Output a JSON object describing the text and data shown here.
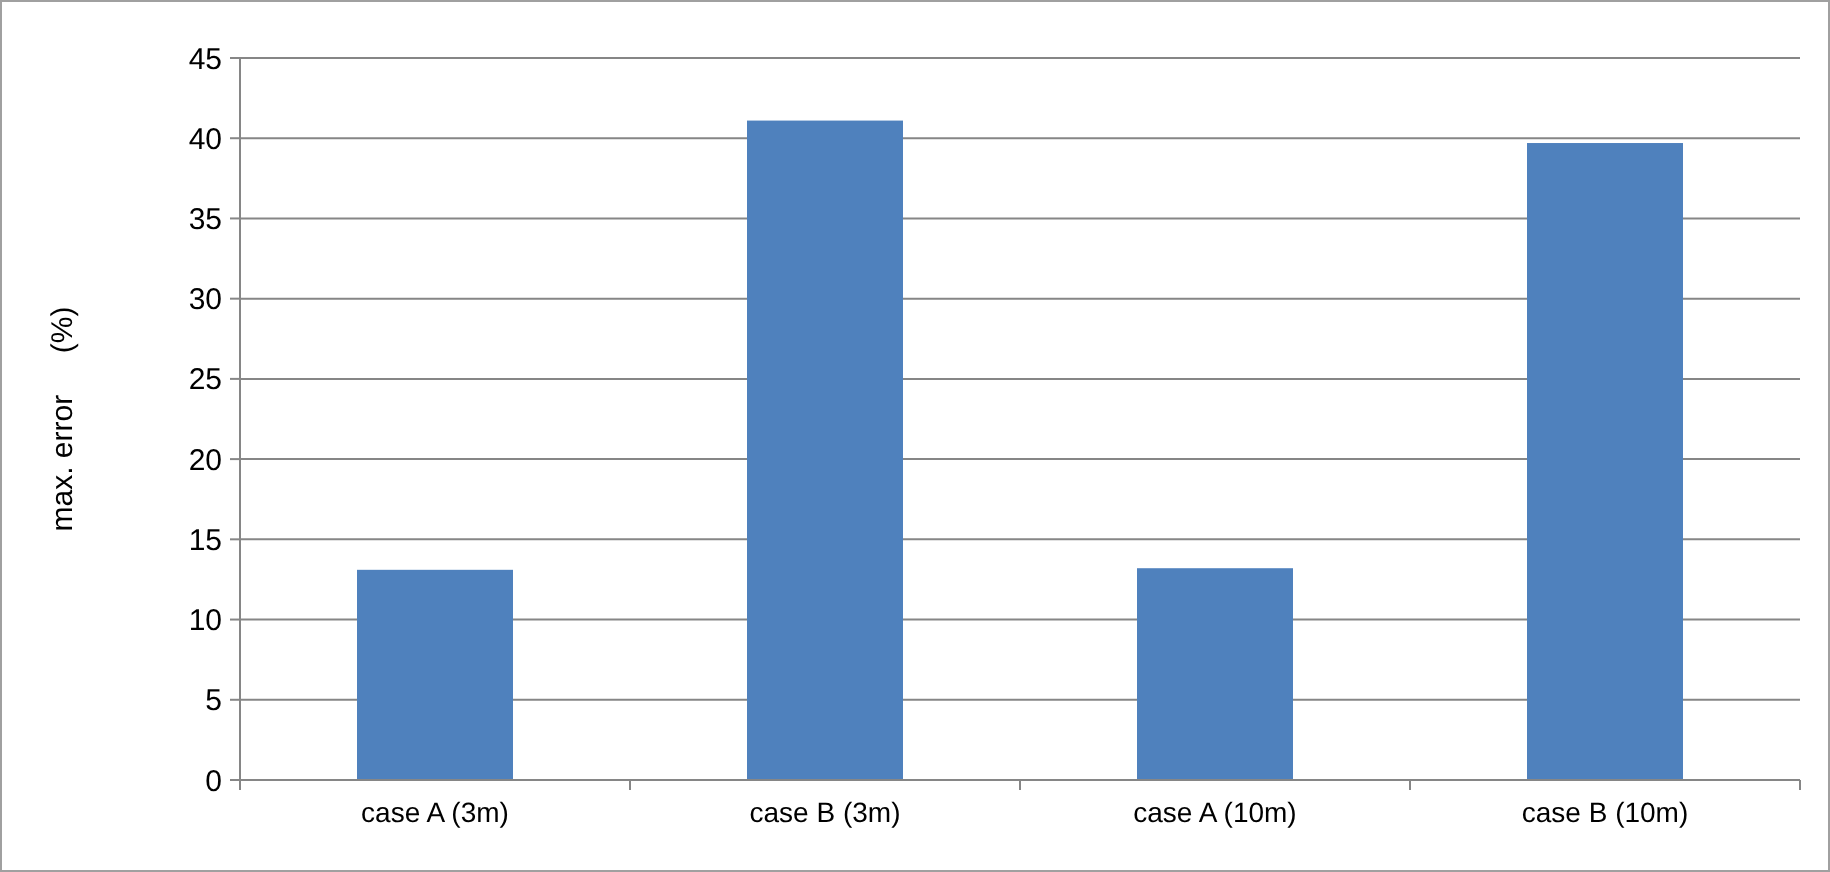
{
  "chart_data": {
    "type": "bar",
    "ylabel": "max. error     (%)",
    "categories": [
      "case A (3m)",
      "case B (3m)",
      "case A (10m)",
      "case B (10m)"
    ],
    "values": [
      13.1,
      41.1,
      13.2,
      39.7
    ],
    "color": "#4f81bd",
    "ylim": [
      0,
      45
    ],
    "yticks": [
      0,
      5,
      10,
      15,
      20,
      25,
      30,
      35,
      40,
      45
    ],
    "grid": "y"
  }
}
